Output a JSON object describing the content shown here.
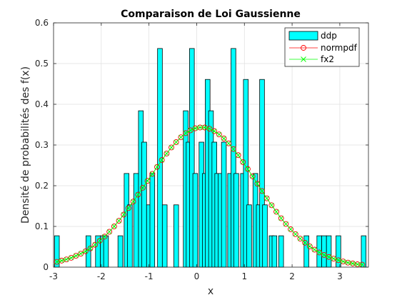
{
  "chart_data": {
    "type": "bar",
    "title": "Comparaison de Loi Gaussienne",
    "xlabel": "x",
    "ylabel": "Densité de probabilités des f(x)",
    "xlim": [
      -3,
      3.6
    ],
    "ylim": [
      0,
      0.6
    ],
    "xticks": [
      "-3",
      "-2",
      "-1",
      "0",
      "1",
      "2",
      "3"
    ],
    "xtick_values": [
      -3,
      -2,
      -1,
      0,
      1,
      2,
      3
    ],
    "yticks": [
      "0",
      "0.1",
      "0.2",
      "0.3",
      "0.4",
      "0.5",
      "0.6"
    ],
    "ytick_values": [
      0,
      0.1,
      0.2,
      0.3,
      0.4,
      0.5,
      0.6
    ],
    "grid": true,
    "legend_position": "top-right",
    "legend": [
      "ddp",
      "normpdf",
      "fx2"
    ],
    "colors": {
      "bar_fill": "#00ffff",
      "bar_edge": "#000000",
      "normpdf": "#ff0000",
      "fx2": "#00ff00"
    },
    "bar_width": 0.1,
    "bars": {
      "name": "ddp",
      "x": [
        -2.93,
        -2.27,
        -2.07,
        -1.97,
        -1.9,
        -1.6,
        -1.47,
        -1.4,
        -1.27,
        -1.17,
        -1.1,
        -1.0,
        -0.93,
        -0.77,
        -0.67,
        -0.43,
        -0.23,
        -0.17,
        -0.1,
        -0.03,
        0.1,
        0.17,
        0.23,
        0.3,
        0.37,
        0.43,
        0.5,
        0.57,
        0.7,
        0.77,
        0.83,
        0.97,
        1.03,
        1.1,
        1.23,
        1.3,
        1.37,
        1.43,
        1.57,
        1.63,
        1.77,
        2.3,
        2.57,
        2.67,
        2.77,
        2.97,
        3.5
      ],
      "values": [
        0.077,
        0.077,
        0.077,
        0.077,
        0.077,
        0.077,
        0.23,
        0.153,
        0.23,
        0.384,
        0.307,
        0.153,
        0.23,
        0.537,
        0.153,
        0.153,
        0.384,
        0.307,
        0.537,
        0.23,
        0.307,
        0.23,
        0.461,
        0.384,
        0.307,
        0.23,
        0.23,
        0.307,
        0.23,
        0.537,
        0.23,
        0.23,
        0.461,
        0.153,
        0.23,
        0.153,
        0.461,
        0.153,
        0.077,
        0.077,
        0.077,
        0.077,
        0.077,
        0.077,
        0.077,
        0.077,
        0.077
      ]
    },
    "series": [
      {
        "name": "normpdf",
        "x": [
          -2.93,
          -2.83,
          -2.73,
          -2.63,
          -2.53,
          -2.43,
          -2.33,
          -2.23,
          -2.13,
          -2.03,
          -1.93,
          -1.83,
          -1.73,
          -1.63,
          -1.53,
          -1.43,
          -1.33,
          -1.23,
          -1.13,
          -1.03,
          -0.93,
          -0.83,
          -0.73,
          -0.63,
          -0.53,
          -0.43,
          -0.33,
          -0.23,
          -0.13,
          -0.03,
          0.07,
          0.17,
          0.27,
          0.37,
          0.47,
          0.57,
          0.67,
          0.77,
          0.87,
          0.97,
          1.07,
          1.17,
          1.27,
          1.37,
          1.47,
          1.57,
          1.67,
          1.77,
          1.87,
          1.97,
          2.07,
          2.17,
          2.27,
          2.37,
          2.47,
          2.57,
          2.67,
          2.77,
          2.87,
          2.97,
          3.07,
          3.17,
          3.27,
          3.37,
          3.47
        ],
        "values": [
          0.013,
          0.016,
          0.019,
          0.023,
          0.028,
          0.033,
          0.039,
          0.046,
          0.055,
          0.065,
          0.075,
          0.087,
          0.1,
          0.114,
          0.129,
          0.145,
          0.161,
          0.178,
          0.195,
          0.212,
          0.229,
          0.246,
          0.263,
          0.279,
          0.294,
          0.307,
          0.319,
          0.329,
          0.336,
          0.341,
          0.343,
          0.343,
          0.34,
          0.334,
          0.326,
          0.316,
          0.304,
          0.29,
          0.275,
          0.258,
          0.241,
          0.223,
          0.205,
          0.187,
          0.169,
          0.152,
          0.136,
          0.12,
          0.106,
          0.093,
          0.081,
          0.07,
          0.06,
          0.051,
          0.043,
          0.036,
          0.03,
          0.025,
          0.021,
          0.017,
          0.014,
          0.011,
          0.009,
          0.007,
          0.006
        ]
      },
      {
        "name": "fx2",
        "x": [
          -2.93,
          -2.83,
          -2.73,
          -2.63,
          -2.53,
          -2.43,
          -2.33,
          -2.23,
          -2.13,
          -2.03,
          -1.93,
          -1.83,
          -1.73,
          -1.63,
          -1.53,
          -1.43,
          -1.33,
          -1.23,
          -1.13,
          -1.03,
          -0.93,
          -0.83,
          -0.73,
          -0.63,
          -0.53,
          -0.43,
          -0.33,
          -0.23,
          -0.13,
          -0.03,
          0.07,
          0.17,
          0.27,
          0.37,
          0.47,
          0.57,
          0.67,
          0.77,
          0.87,
          0.97,
          1.07,
          1.17,
          1.27,
          1.37,
          1.47,
          1.57,
          1.67,
          1.77,
          1.87,
          1.97,
          2.07,
          2.17,
          2.27,
          2.37,
          2.47,
          2.57,
          2.67,
          2.77,
          2.87,
          2.97,
          3.07,
          3.17,
          3.27,
          3.37,
          3.47
        ],
        "values": [
          0.013,
          0.016,
          0.019,
          0.023,
          0.028,
          0.033,
          0.039,
          0.046,
          0.055,
          0.065,
          0.075,
          0.087,
          0.1,
          0.114,
          0.129,
          0.145,
          0.161,
          0.178,
          0.195,
          0.212,
          0.229,
          0.246,
          0.263,
          0.279,
          0.294,
          0.307,
          0.319,
          0.329,
          0.336,
          0.341,
          0.343,
          0.343,
          0.34,
          0.334,
          0.326,
          0.316,
          0.304,
          0.29,
          0.275,
          0.258,
          0.241,
          0.223,
          0.205,
          0.187,
          0.169,
          0.152,
          0.136,
          0.12,
          0.106,
          0.093,
          0.081,
          0.07,
          0.06,
          0.051,
          0.043,
          0.036,
          0.03,
          0.025,
          0.021,
          0.017,
          0.014,
          0.011,
          0.009,
          0.007,
          0.006
        ]
      }
    ]
  }
}
